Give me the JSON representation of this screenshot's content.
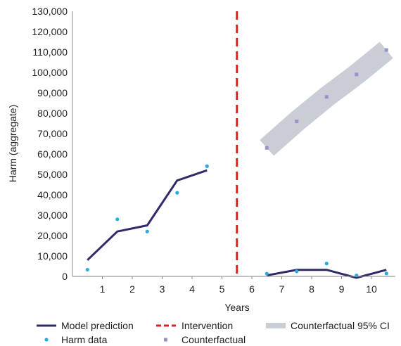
{
  "chart_data": {
    "type": "line",
    "xlabel": "Years",
    "ylabel": "Harm (aggregate)",
    "xlim": [
      0,
      10.8
    ],
    "ylim": [
      0,
      130000
    ],
    "x_ticks": [
      1,
      2,
      3,
      4,
      5,
      6,
      7,
      8,
      9,
      10
    ],
    "y_ticks": [
      0,
      10000,
      20000,
      30000,
      40000,
      50000,
      60000,
      70000,
      80000,
      90000,
      100000,
      110000,
      120000,
      130000
    ],
    "y_tick_labels": [
      "0",
      "10,000",
      "20,000",
      "30,000",
      "40,000",
      "50,000",
      "60,000",
      "70,000",
      "80,000",
      "90,000",
      "100,000",
      "110,000",
      "120,000",
      "130,000"
    ],
    "x_tick_labels": [
      "1",
      "2",
      "3",
      "4",
      "5",
      "6",
      "7",
      "8",
      "9",
      "10"
    ],
    "grid": false,
    "legend_position": "bottom",
    "intervention_x": 5.5,
    "series": [
      {
        "name": "Model prediction",
        "kind": "line",
        "color": "#2e2a6b",
        "segments": [
          {
            "x": [
              0.5,
              1.5,
              2.5,
              3.5,
              4.5
            ],
            "y": [
              8000,
              22000,
              25000,
              47000,
              52000
            ]
          },
          {
            "x": [
              6.5,
              7.5,
              8.5,
              9.5,
              10.5
            ],
            "y": [
              500,
              3200,
              3200,
              -700,
              3200
            ]
          }
        ]
      },
      {
        "name": "Harm data",
        "kind": "points",
        "color": "#29abe2",
        "x": [
          0.5,
          1.5,
          2.5,
          3.5,
          4.5,
          6.5,
          7.5,
          8.5,
          9.5,
          10.5
        ],
        "y": [
          3300,
          28000,
          22000,
          41000,
          54000,
          1300,
          2500,
          6300,
          500,
          1400
        ]
      },
      {
        "name": "Counterfactual",
        "kind": "points",
        "color": "#9a93c9",
        "x": [
          6.5,
          7.5,
          8.5,
          9.5,
          10.5
        ],
        "y": [
          63000,
          76000,
          88000,
          99000,
          111000
        ]
      },
      {
        "name": "Counterfactual 95% CI",
        "kind": "band",
        "color": "#c9ced6",
        "x": [
          6.5,
          7.5,
          8.5,
          9.5,
          10.5
        ],
        "center": [
          63000,
          76000,
          88000,
          99000,
          111000
        ]
      },
      {
        "name": "Intervention",
        "kind": "vline",
        "color": "#e02020",
        "x": 5.5
      }
    ]
  },
  "legend": {
    "model_prediction": "Model prediction",
    "intervention": "Intervention",
    "counterfactual_ci": "Counterfactual 95% CI",
    "harm_data": "Harm data",
    "counterfactual": "Counterfactual"
  },
  "colors": {
    "model": "#2e2a6b",
    "harm": "#29abe2",
    "counterfactual": "#9a93c9",
    "band": "#c9ced6",
    "intervention": "#e02020",
    "axis": "#888888"
  }
}
